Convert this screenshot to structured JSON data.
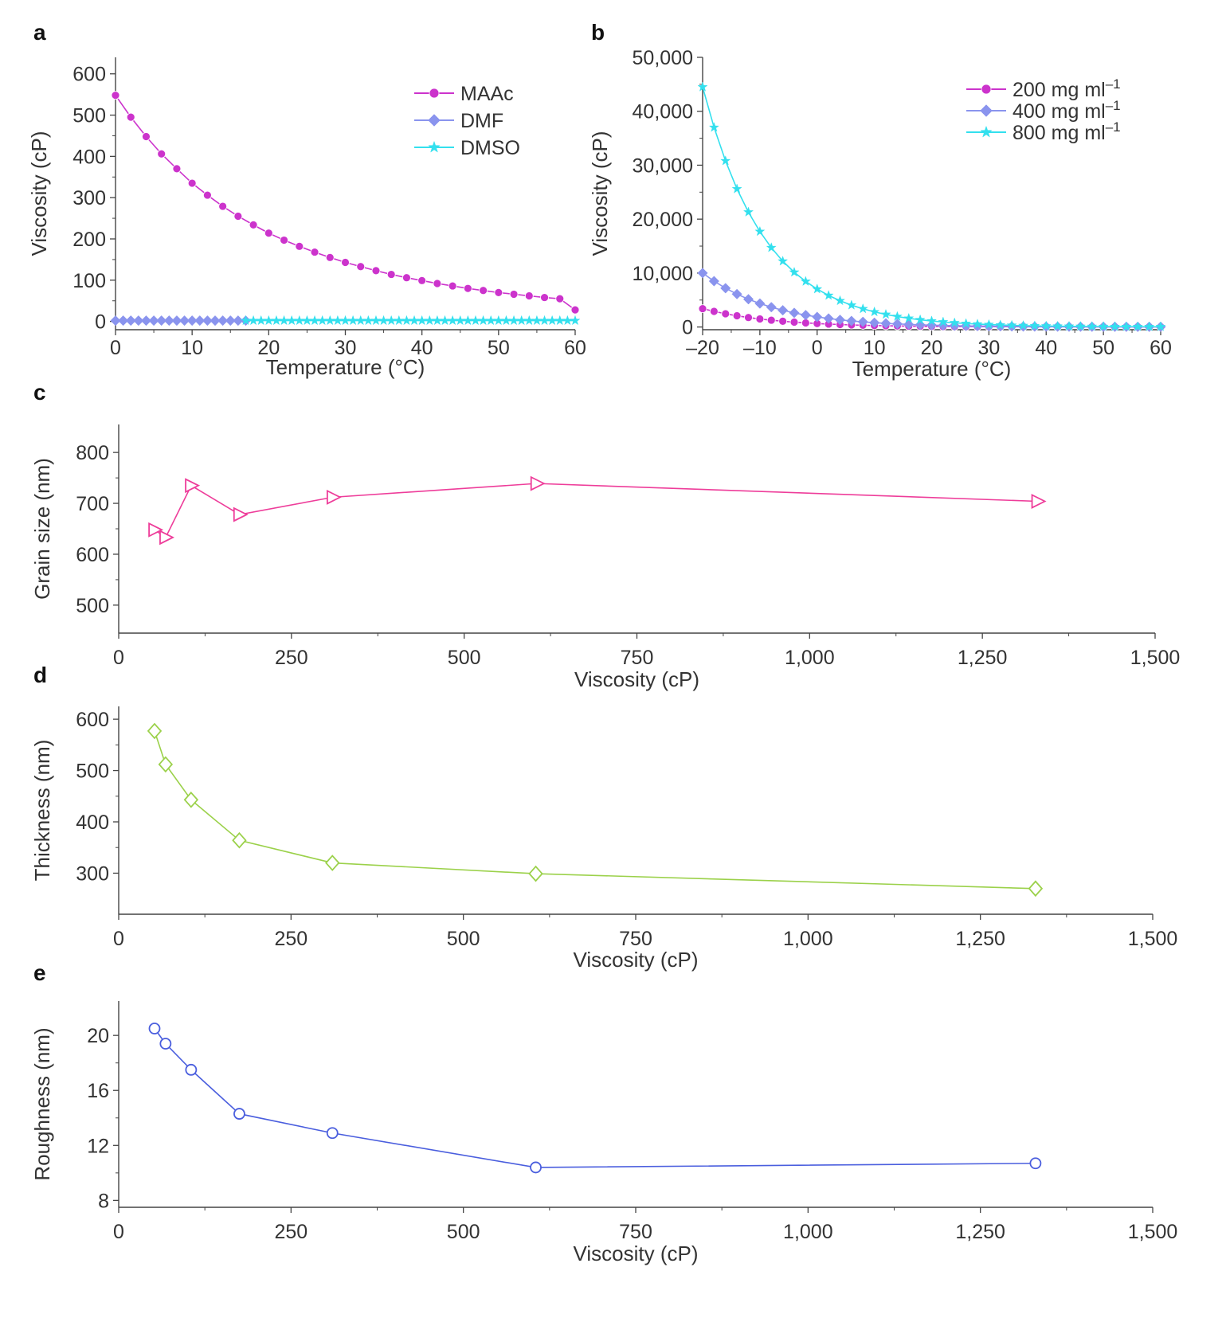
{
  "figure": {
    "background": "#ffffff",
    "axis_color": "#444444"
  },
  "chart_data": [
    {
      "panel": "a",
      "type": "line",
      "xlabel": "Temperature (°C)",
      "ylabel": "Viscosity (cP)",
      "xlim": [
        0,
        60
      ],
      "ylim": [
        -20,
        640
      ],
      "xticks": [
        0,
        10,
        20,
        30,
        40,
        50,
        60
      ],
      "xtick_labels": [
        "0",
        "10",
        "20",
        "30",
        "40",
        "50",
        "60"
      ],
      "yticks": [
        0,
        100,
        200,
        300,
        400,
        500,
        600
      ],
      "ytick_labels": [
        "0",
        "100",
        "200",
        "300",
        "400",
        "500",
        "600"
      ],
      "grid": false,
      "legend_position": "top-right",
      "series": [
        {
          "name": "MAAc",
          "color": "#cc33cc",
          "marker": "circle",
          "x": [
            0,
            2,
            4,
            6,
            8,
            10,
            12,
            14,
            16,
            18,
            20,
            22,
            24,
            26,
            28,
            30,
            32,
            34,
            36,
            38,
            40,
            42,
            44,
            46,
            48,
            50,
            52,
            54,
            56,
            58,
            60
          ],
          "values": [
            548,
            495,
            448,
            406,
            370,
            335,
            306,
            279,
            255,
            234,
            214,
            197,
            182,
            168,
            155,
            143,
            133,
            123,
            114,
            106,
            99,
            92,
            86,
            80,
            75,
            70,
            66,
            62,
            58,
            55,
            28
          ]
        },
        {
          "name": "DMF",
          "color": "#8a94ee",
          "marker": "diamond",
          "x": [
            0,
            1,
            2,
            3,
            4,
            5,
            6,
            7,
            8,
            9,
            10,
            11,
            12,
            13,
            14,
            15,
            16,
            17
          ],
          "values": [
            2,
            2,
            2,
            2,
            2,
            2,
            2,
            2,
            2,
            2,
            2,
            2,
            2,
            2,
            2,
            2,
            2,
            2
          ]
        },
        {
          "name": "DMSO",
          "color": "#33e0ee",
          "marker": "star",
          "x": [
            17,
            18,
            19,
            20,
            21,
            22,
            23,
            24,
            25,
            26,
            27,
            28,
            29,
            30,
            31,
            32,
            33,
            34,
            35,
            36,
            37,
            38,
            39,
            40,
            41,
            42,
            43,
            44,
            45,
            46,
            47,
            48,
            49,
            50,
            51,
            52,
            53,
            54,
            55,
            56,
            57,
            58,
            59,
            60
          ],
          "values": [
            2,
            2,
            2,
            2,
            2,
            2,
            2,
            2,
            2,
            2,
            2,
            2,
            2,
            2,
            2,
            2,
            2,
            2,
            2,
            2,
            2,
            2,
            2,
            2,
            2,
            2,
            2,
            2,
            2,
            2,
            2,
            2,
            2,
            2,
            2,
            2,
            2,
            2,
            2,
            2,
            2,
            2,
            2,
            2
          ]
        }
      ]
    },
    {
      "panel": "b",
      "type": "line",
      "xlabel": "Temperature (°C)",
      "ylabel": "Viscosity (cP)",
      "xlim": [
        -20,
        60
      ],
      "ylim": [
        -500,
        50000
      ],
      "xticks": [
        -20,
        -10,
        0,
        10,
        20,
        30,
        40,
        50,
        60
      ],
      "xtick_labels": [
        "–20",
        "–10",
        "0",
        "10",
        "20",
        "30",
        "40",
        "50",
        "60"
      ],
      "yticks": [
        0,
        10000,
        20000,
        30000,
        40000,
        50000
      ],
      "ytick_labels": [
        "0",
        "10,000",
        "20,000",
        "30,000",
        "40,000",
        "50,000"
      ],
      "grid": false,
      "legend_position": "top-right",
      "series": [
        {
          "name": "200 mg ml",
          "name_superscript": "–1",
          "color": "#cc33cc",
          "marker": "circle",
          "x": [
            -20,
            -18,
            -16,
            -14,
            -12,
            -10,
            -8,
            -6,
            -4,
            -2,
            0,
            2,
            4,
            6,
            8,
            10,
            12,
            14,
            16,
            18,
            20,
            22,
            24,
            26,
            28,
            30,
            32,
            34,
            36,
            38,
            40,
            42,
            44,
            46,
            48,
            50,
            52,
            54,
            56,
            58,
            60
          ],
          "values": [
            3400,
            2900,
            2450,
            2080,
            1760,
            1490,
            1260,
            1070,
            900,
            760,
            640,
            540,
            455,
            385,
            325,
            275,
            232,
            196,
            165,
            140,
            118,
            100,
            90,
            80,
            72,
            65,
            58,
            52,
            47,
            42,
            38,
            35,
            32,
            30,
            28,
            27,
            26,
            26,
            25,
            25,
            25
          ]
        },
        {
          "name": "400 mg ml",
          "name_superscript": "–1",
          "color": "#8a94ee",
          "marker": "diamond",
          "x": [
            -20,
            -18,
            -16,
            -14,
            -12,
            -10,
            -8,
            -6,
            -4,
            -2,
            0,
            2,
            4,
            6,
            8,
            10,
            12,
            14,
            16,
            18,
            20,
            22,
            24,
            26,
            28,
            30,
            32,
            34,
            36,
            38,
            40,
            42,
            44,
            46,
            48,
            50,
            52,
            54,
            56,
            58,
            60
          ],
          "values": [
            10000,
            8500,
            7200,
            6100,
            5150,
            4350,
            3680,
            3100,
            2620,
            2210,
            1870,
            1580,
            1330,
            1120,
            950,
            800,
            675,
            570,
            480,
            405,
            342,
            290,
            245,
            207,
            175,
            150,
            128,
            110,
            95,
            83,
            73,
            65,
            58,
            52,
            48,
            45,
            43,
            42,
            41,
            40,
            40
          ]
        },
        {
          "name": "800 mg ml",
          "name_superscript": "–1",
          "color": "#33e0ee",
          "marker": "star",
          "x": [
            -20,
            -18,
            -16,
            -14,
            -12,
            -10,
            -8,
            -6,
            -4,
            -2,
            0,
            2,
            4,
            6,
            8,
            10,
            12,
            14,
            16,
            18,
            20,
            22,
            24,
            26,
            28,
            30,
            32,
            34,
            36,
            38,
            40,
            42,
            44,
            46,
            48,
            50,
            52,
            54,
            56,
            58,
            60
          ],
          "values": [
            44500,
            37000,
            30800,
            25600,
            21300,
            17700,
            14700,
            12200,
            10150,
            8450,
            7030,
            5850,
            4870,
            4050,
            3370,
            2800,
            2330,
            1940,
            1610,
            1340,
            1115,
            930,
            775,
            645,
            537,
            447,
            372,
            310,
            258,
            215,
            180,
            150,
            126,
            106,
            90,
            77,
            67,
            60,
            55,
            52,
            50
          ]
        }
      ]
    },
    {
      "panel": "c",
      "type": "line",
      "xlabel": "Viscosity (cP)",
      "ylabel": "Grain size (nm)",
      "xlim": [
        0,
        1500
      ],
      "ylim": [
        445,
        855
      ],
      "xticks": [
        0,
        250,
        500,
        750,
        1000,
        1250,
        1500
      ],
      "xtick_labels": [
        "0",
        "250",
        "500",
        "750",
        "1,000",
        "1,250",
        "1,500"
      ],
      "yticks": [
        500,
        600,
        700,
        800
      ],
      "ytick_labels": [
        "500",
        "600",
        "700",
        "800"
      ],
      "grid": false,
      "series": [
        {
          "name": "",
          "color": "#ee3d9a",
          "marker": "triangle-right",
          "x": [
            52,
            68,
            105,
            175,
            310,
            605,
            1330
          ],
          "values": [
            648,
            633,
            735,
            678,
            712,
            739,
            704
          ]
        }
      ]
    },
    {
      "panel": "d",
      "type": "line",
      "xlabel": "Viscosity (cP)",
      "ylabel": "Thickness (nm)",
      "xlim": [
        0,
        1500
      ],
      "ylim": [
        220,
        625
      ],
      "xticks": [
        0,
        250,
        500,
        750,
        1000,
        1250,
        1500
      ],
      "xtick_labels": [
        "0",
        "250",
        "500",
        "750",
        "1,000",
        "1,250",
        "1,500"
      ],
      "yticks": [
        300,
        400,
        500,
        600
      ],
      "ytick_labels": [
        "300",
        "400",
        "500",
        "600"
      ],
      "grid": false,
      "series": [
        {
          "name": "",
          "color": "#9bd14a",
          "marker": "diamond-open",
          "x": [
            52,
            68,
            105,
            175,
            310,
            605,
            1330
          ],
          "values": [
            577,
            512,
            443,
            364,
            320,
            299,
            270
          ]
        }
      ]
    },
    {
      "panel": "e",
      "type": "line",
      "xlabel": "Viscosity (cP)",
      "ylabel": "Roughness (nm)",
      "xlim": [
        0,
        1500
      ],
      "ylim": [
        7.5,
        22.5
      ],
      "xticks": [
        0,
        250,
        500,
        750,
        1000,
        1250,
        1500
      ],
      "xtick_labels": [
        "0",
        "250",
        "500",
        "750",
        "1,000",
        "1,250",
        "1,500"
      ],
      "yticks": [
        8,
        12,
        16,
        20
      ],
      "ytick_labels": [
        "8",
        "12",
        "16",
        "20"
      ],
      "grid": false,
      "series": [
        {
          "name": "",
          "color": "#4a5ede",
          "marker": "circle-open",
          "x": [
            52,
            68,
            105,
            175,
            310,
            605,
            1330
          ],
          "values": [
            20.5,
            19.4,
            17.5,
            14.3,
            12.9,
            10.4,
            10.7
          ]
        }
      ]
    }
  ]
}
